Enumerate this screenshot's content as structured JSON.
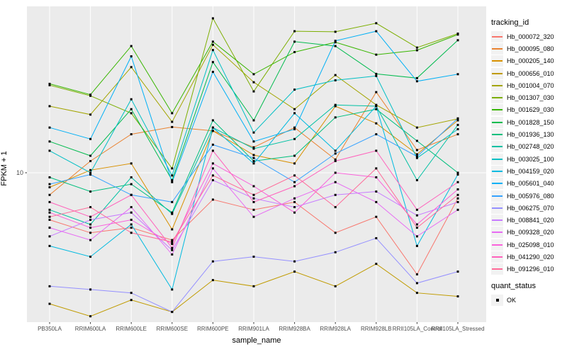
{
  "figure": {
    "background": "#FFFFFF",
    "panel_background": "#EBEBEB",
    "gridline_color": "#FFFFFF",
    "axis_text_color": "#4D4D4D",
    "tick_mark_color": "#333333",
    "point_color": "#000000"
  },
  "legends": {
    "tracking": {
      "title": "tracking_id"
    },
    "quant": {
      "title": "quant_status",
      "items": [
        {
          "label": "OK",
          "marker": "black-square"
        }
      ]
    }
  },
  "chart_data": {
    "type": "line",
    "title": "",
    "xlabel": "sample_name",
    "ylabel": "FPKM + 1",
    "y_scale": "log10",
    "y_ticks": [
      {
        "label": "10",
        "value": 10
      }
    ],
    "ylim": [
      1.9,
      65
    ],
    "grid": true,
    "legend_position": "right",
    "point_marker": "square",
    "categories": [
      "PB350LA",
      "RRIM600LA",
      "RRIM600LE",
      "RRIM600SE",
      "RRIM600PE",
      "RRIM901LA",
      "RRIM928BA",
      "RRIM928LA",
      "RRIM928LB",
      "RRII105LA_Control",
      "RRII105LA_Stressed"
    ],
    "series": [
      {
        "name": "Hb_000072_320",
        "color": "#F8766D",
        "values": [
          5.9,
          5.1,
          5.4,
          4.7,
          7.4,
          6.6,
          7.2,
          5.1,
          6.1,
          3.2,
          7.5
        ]
      },
      {
        "name": "Hb_000095_080",
        "color": "#EA8331",
        "values": [
          7.8,
          11.4,
          15.4,
          16.7,
          16.0,
          13.3,
          16.6,
          11.6,
          24.7,
          12.9,
          15.4
        ]
      },
      {
        "name": "Hb_000205_140",
        "color": "#D89000",
        "values": [
          8.5,
          10.3,
          11.1,
          5.3,
          16.0,
          12.2,
          11.1,
          21.1,
          17.4,
          12.3,
          18.0
        ]
      },
      {
        "name": "Hb_000656_010",
        "color": "#C09B00",
        "values": [
          2.3,
          2.0,
          2.4,
          2.1,
          3.0,
          2.8,
          3.3,
          2.8,
          3.6,
          2.6,
          2.5
        ]
      },
      {
        "name": "Hb_001004_070",
        "color": "#A3A500",
        "values": [
          21.1,
          19.2,
          32.7,
          17.7,
          42.0,
          27.6,
          20.4,
          29.9,
          21.4,
          16.6,
          18.3
        ]
      },
      {
        "name": "Hb_001307_030",
        "color": "#7CAE00",
        "values": [
          26.7,
          23.7,
          19.5,
          10.5,
          56.5,
          24.9,
          48.9,
          48.6,
          53.5,
          40.7,
          47.6
        ]
      },
      {
        "name": "Hb_001629_030",
        "color": "#39B600",
        "values": [
          27.1,
          24.0,
          41.4,
          19.5,
          43.5,
          30.2,
          38.7,
          43.2,
          37.6,
          39.5,
          47.1
        ]
      },
      {
        "name": "Hb_001828_150",
        "color": "#00BB4E",
        "values": [
          14.2,
          12.1,
          20.4,
          9.2,
          34.6,
          18.0,
          43.5,
          41.4,
          30.3,
          28.9,
          44.2
        ]
      },
      {
        "name": "Hb_001936_130",
        "color": "#00BF7D",
        "values": [
          9.5,
          8.1,
          8.8,
          6.4,
          18.0,
          11.4,
          12.1,
          18.6,
          20.4,
          14.3,
          10.0
        ]
      },
      {
        "name": "Hb_002748_020",
        "color": "#00C1A3",
        "values": [
          6.6,
          5.6,
          9.5,
          6.3,
          16.6,
          13.1,
          14.6,
          21.4,
          21.1,
          9.2,
          17.1
        ]
      },
      {
        "name": "Hb_003025_100",
        "color": "#00BFC4",
        "values": [
          12.8,
          10.0,
          22.8,
          9.7,
          39.6,
          15.7,
          25.4,
          28.2,
          29.6,
          11.8,
          16.3
        ]
      },
      {
        "name": "Hb_004159_020",
        "color": "#00BAE0",
        "values": [
          4.4,
          3.9,
          5.6,
          2.7,
          16.6,
          11.1,
          19.5,
          12.8,
          21.1,
          4.4,
          9.8
        ]
      },
      {
        "name": "Hb_005601_040",
        "color": "#00B0F6",
        "values": [
          16.6,
          14.6,
          36.9,
          9.0,
          31.0,
          14.2,
          16.3,
          43.9,
          48.9,
          27.9,
          30.2
        ]
      },
      {
        "name": "Hb_005976_080",
        "color": "#35A2FF",
        "values": [
          8.8,
          9.8,
          7.8,
          7.2,
          13.7,
          11.8,
          9.0,
          12.4,
          15.4,
          12.0,
          18.4
        ]
      },
      {
        "name": "Hb_006275_070",
        "color": "#9590FF",
        "values": [
          2.8,
          2.7,
          2.6,
          2.1,
          3.7,
          3.9,
          3.7,
          4.1,
          4.8,
          2.9,
          3.3
        ]
      },
      {
        "name": "Hb_008841_020",
        "color": "#C77CFF",
        "values": [
          4.9,
          5.9,
          6.4,
          4.2,
          9.2,
          7.5,
          6.8,
          7.8,
          8.1,
          6.2,
          7.2
        ]
      },
      {
        "name": "Hb_009328_020",
        "color": "#E76BF3",
        "values": [
          5.4,
          4.7,
          6.8,
          4.0,
          10.5,
          6.1,
          7.5,
          9.0,
          7.2,
          4.9,
          6.6
        ]
      },
      {
        "name": "Hb_025098_010",
        "color": "#FA62DB",
        "values": [
          6.4,
          5.4,
          5.9,
          4.5,
          11.1,
          8.6,
          6.4,
          10.0,
          9.5,
          5.6,
          8.3
        ]
      },
      {
        "name": "Hb_041290_020",
        "color": "#FF62BC",
        "values": [
          7.2,
          6.1,
          7.8,
          4.3,
          12.8,
          7.2,
          8.6,
          11.4,
          12.8,
          6.6,
          9.0
        ]
      },
      {
        "name": "Hb_091296_010",
        "color": "#FF6A98",
        "values": [
          6.1,
          6.8,
          5.1,
          4.6,
          9.7,
          7.8,
          9.7,
          6.8,
          10.5,
          5.4,
          7.8
        ]
      }
    ],
    "quant_status": "OK"
  }
}
